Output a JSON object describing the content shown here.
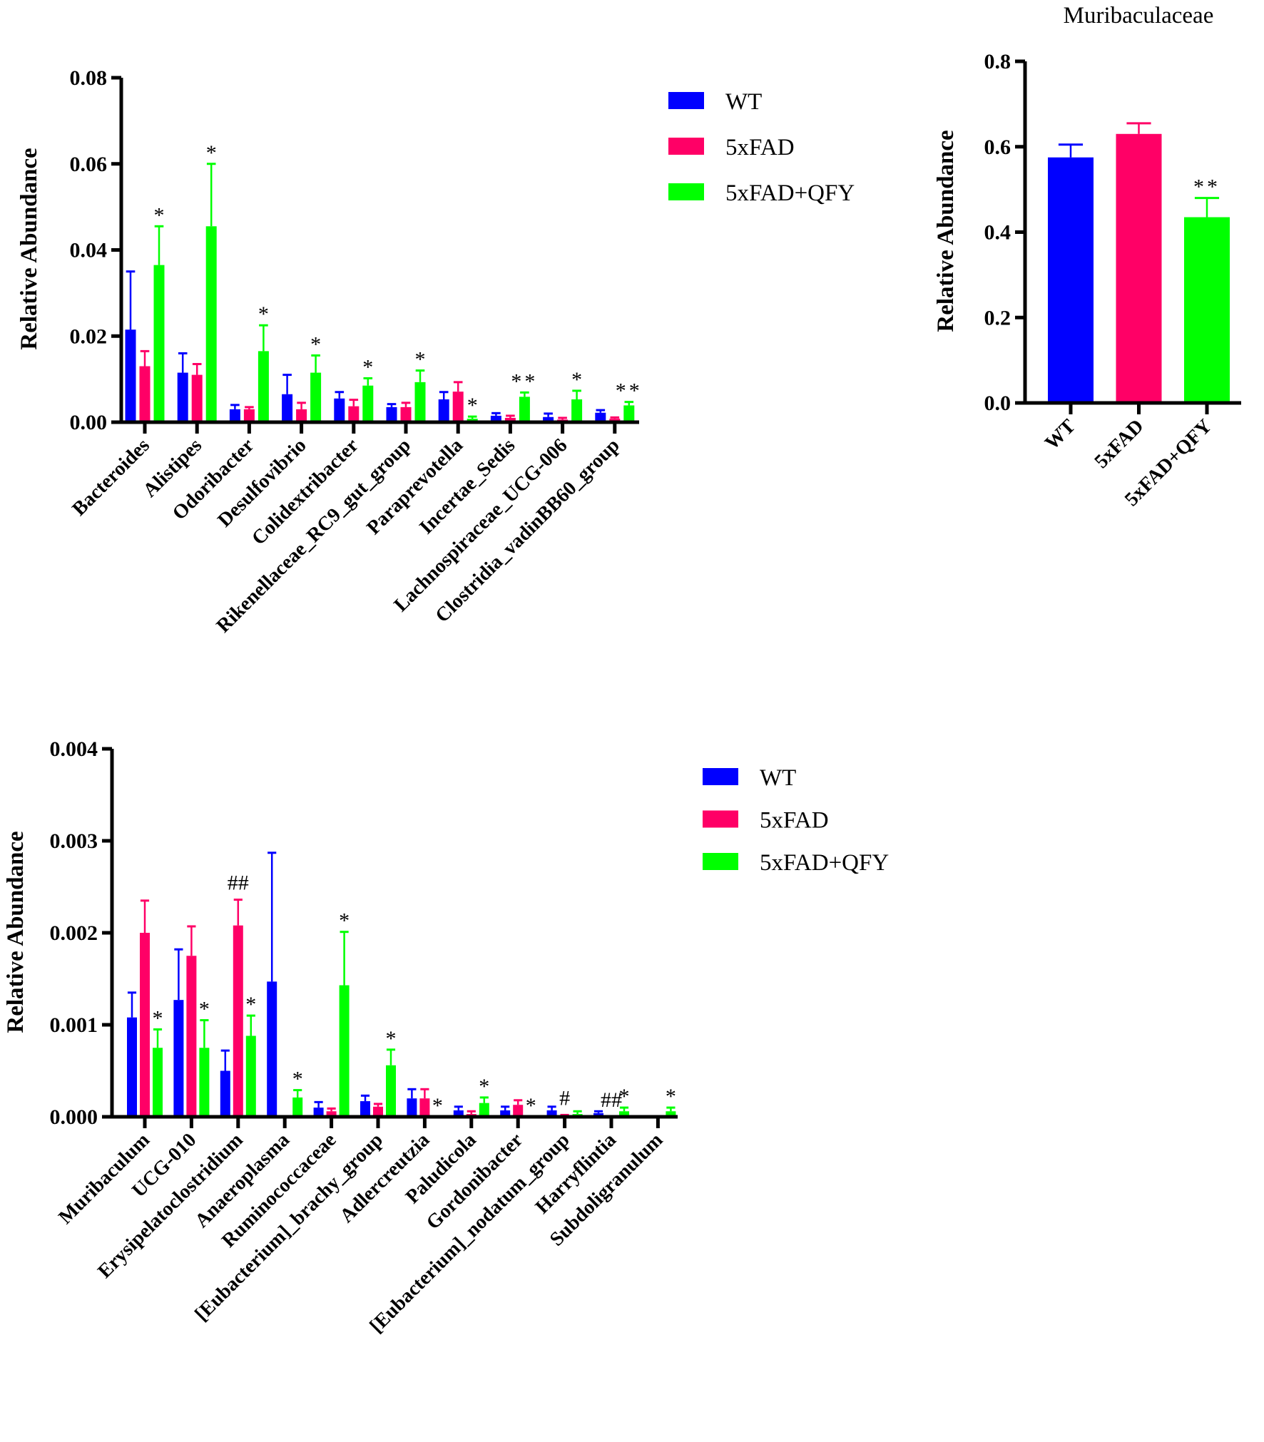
{
  "legend": {
    "series": [
      "WT",
      "5xFAD",
      "5xFAD+QFY"
    ],
    "colors": [
      "#0000ff",
      "#ff0066",
      "#00ff00"
    ]
  },
  "chart_data": [
    {
      "type": "bar",
      "title": "",
      "xlabel": "",
      "ylabel": "Relative Abundance",
      "ylim": [
        0,
        0.08
      ],
      "yticks": [
        "0.00",
        "0.02",
        "0.04",
        "0.06",
        "0.08"
      ],
      "legend_position": "top-right",
      "categories": [
        "Bacteroides",
        "Alistipes",
        "Odoribacter",
        "Desulfovibrio",
        "Colidextribacter",
        "Rikenellaceae_RC9_gut_group",
        "Paraprevotella",
        "Incertae_Sedis",
        "Lachnospiraceae_UCG-006",
        "Clostridia_vadinBB60_group"
      ],
      "series": [
        {
          "name": "WT",
          "values": [
            0.0215,
            0.0115,
            0.003,
            0.0065,
            0.0055,
            0.0035,
            0.0053,
            0.0015,
            0.0012,
            0.0022
          ],
          "errors": [
            0.0135,
            0.0045,
            0.001,
            0.0045,
            0.0015,
            0.0007,
            0.0017,
            0.0006,
            0.0008,
            0.0006
          ]
        },
        {
          "name": "5xFAD",
          "values": [
            0.013,
            0.011,
            0.003,
            0.003,
            0.0037,
            0.0035,
            0.0071,
            0.001,
            0.0006,
            0.0008
          ],
          "errors": [
            0.0035,
            0.0025,
            0.0005,
            0.0015,
            0.0015,
            0.001,
            0.0022,
            0.0005,
            0.0004,
            0.0003
          ]
        },
        {
          "name": "5xFAD+QFY",
          "values": [
            0.0365,
            0.0455,
            0.0165,
            0.0115,
            0.0085,
            0.0093,
            0.0008,
            0.0059,
            0.0053,
            0.0039
          ],
          "errors": [
            0.009,
            0.0145,
            0.006,
            0.004,
            0.0017,
            0.0027,
            0.0005,
            0.001,
            0.002,
            0.0008
          ]
        }
      ],
      "annotations": [
        {
          "group": 0,
          "series": 2,
          "text": "*"
        },
        {
          "group": 1,
          "series": 2,
          "text": "*"
        },
        {
          "group": 2,
          "series": 2,
          "text": "*"
        },
        {
          "group": 3,
          "series": 2,
          "text": "*"
        },
        {
          "group": 4,
          "series": 2,
          "text": "*"
        },
        {
          "group": 5,
          "series": 2,
          "text": "*"
        },
        {
          "group": 6,
          "series": 2,
          "text": "*"
        },
        {
          "group": 7,
          "series": 2,
          "text": "**"
        },
        {
          "group": 8,
          "series": 2,
          "text": "*"
        },
        {
          "group": 9,
          "series": 2,
          "text": "**"
        }
      ]
    },
    {
      "type": "bar",
      "title": "Muribaculaceae",
      "xlabel": "",
      "ylabel": "Relative Abundance",
      "ylim": [
        0,
        0.8
      ],
      "yticks": [
        "0.0",
        "0.2",
        "0.4",
        "0.6",
        "0.8"
      ],
      "categories": [
        "WT",
        "5xFAD",
        "5xFAD+QFY"
      ],
      "values": [
        0.575,
        0.63,
        0.435
      ],
      "errors": [
        0.03,
        0.025,
        0.045
      ],
      "annotations": [
        {
          "group": 2,
          "text": "**"
        }
      ]
    },
    {
      "type": "bar",
      "title": "",
      "xlabel": "",
      "ylabel": "Relative Abundance",
      "ylim": [
        0,
        0.004
      ],
      "yticks": [
        "0.000",
        "0.001",
        "0.002",
        "0.003",
        "0.004"
      ],
      "legend_position": "top-right",
      "categories": [
        "Muribaculum",
        "UCG-010",
        "Erysipelatoclostridium",
        "Anaeroplasma",
        "Ruminococcaceae",
        "[Eubacterium]_brachy_group",
        "Adlercreutzia",
        "Paludicola",
        "Gordonibacter",
        "[Eubacterium]_nodatum_group",
        "Harryflintia",
        "Subdoligranulum"
      ],
      "series": [
        {
          "name": "WT",
          "values": [
            0.00108,
            0.00127,
            0.0005,
            0.00147,
            0.0001,
            0.00017,
            0.0002,
            7e-05,
            7e-05,
            7e-05,
            4e-05,
            1e-05
          ],
          "errors": [
            0.00027,
            0.00055,
            0.00022,
            0.0014,
            6e-05,
            6e-05,
            0.0001,
            4e-05,
            4e-05,
            4e-05,
            2e-05,
            0.0
          ]
        },
        {
          "name": "5xFAD",
          "values": [
            0.002,
            0.00175,
            0.00208,
            1e-05,
            6e-05,
            0.00011,
            0.0002,
            3e-05,
            0.00013,
            1e-05,
            0.0,
            0.0
          ],
          "errors": [
            0.00035,
            0.00032,
            0.00028,
            0.0,
            3e-05,
            3e-05,
            0.0001,
            3e-05,
            5e-05,
            1e-05,
            0.0,
            0.0
          ]
        },
        {
          "name": "5xFAD+QFY",
          "values": [
            0.00075,
            0.00075,
            0.00088,
            0.00021,
            0.00143,
            0.00056,
            0.0,
            0.00015,
            0.0,
            3e-05,
            6e-05,
            6e-05
          ],
          "errors": [
            0.0002,
            0.0003,
            0.00022,
            8e-05,
            0.00058,
            0.00017,
            0.0,
            6e-05,
            0.0,
            3e-05,
            4e-05,
            4e-05
          ]
        }
      ],
      "annotations": [
        {
          "group": 0,
          "series": 2,
          "text": "*"
        },
        {
          "group": 1,
          "series": 2,
          "text": "*"
        },
        {
          "group": 2,
          "series": 1,
          "text": "##"
        },
        {
          "group": 2,
          "series": 2,
          "text": "*"
        },
        {
          "group": 3,
          "series": 2,
          "text": "*"
        },
        {
          "group": 4,
          "series": 2,
          "text": "*"
        },
        {
          "group": 5,
          "series": 2,
          "text": "*"
        },
        {
          "group": 6,
          "series": 2,
          "text": "*"
        },
        {
          "group": 7,
          "series": 2,
          "text": "*"
        },
        {
          "group": 8,
          "series": 2,
          "text": "*"
        },
        {
          "group": 9,
          "series": 1,
          "text": "#"
        },
        {
          "group": 10,
          "series": 1,
          "text": "##"
        },
        {
          "group": 10,
          "series": 2,
          "text": "*"
        },
        {
          "group": 11,
          "series": 2,
          "text": "*"
        }
      ]
    }
  ]
}
